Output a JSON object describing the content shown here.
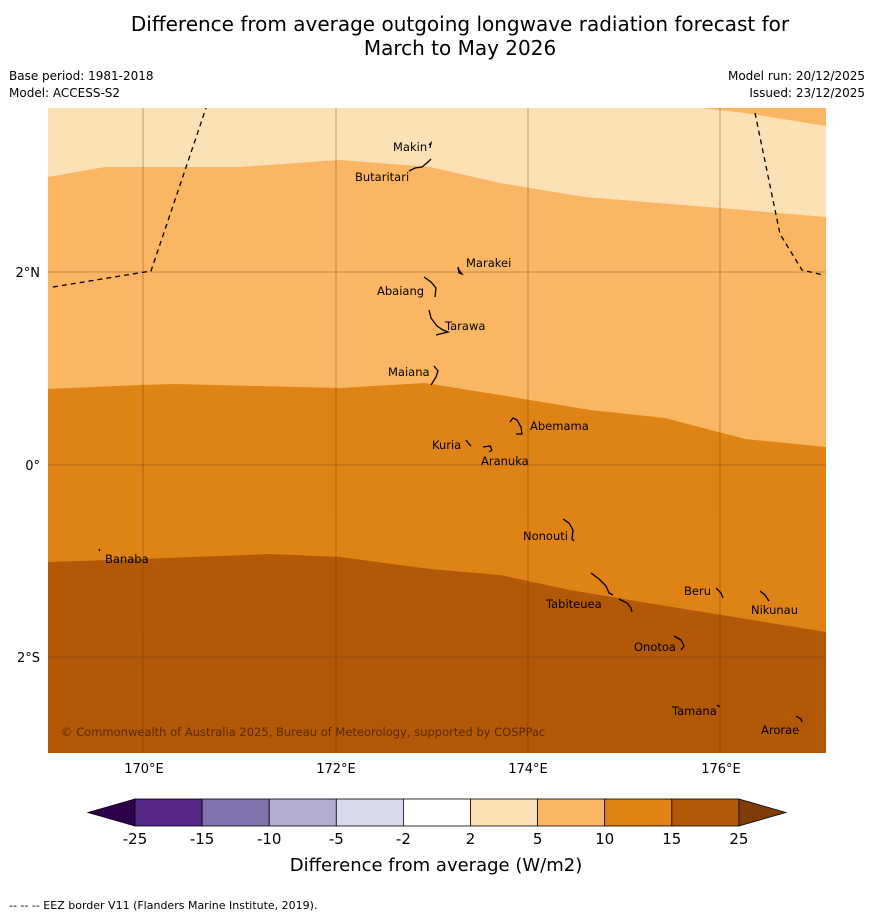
{
  "header": {
    "title_line1": "Difference from average outgoing longwave radiation forecast for",
    "title_line2": "March to May 2026",
    "base_period": "Base period: 1981-2018",
    "model": "Model: ACCESS-S2",
    "model_run": "Model run: 20/12/2025",
    "issued": "Issued: 23/12/2025"
  },
  "map": {
    "lat_labels": [
      "2°N",
      "0°",
      "2°S"
    ],
    "lon_labels": [
      "170°E",
      "172°E",
      "174°E",
      "176°E"
    ],
    "copyright": "© Commonwealth of Australia 2025, Bureau of Meteorology, supported by COSPPac",
    "places": [
      "Makin",
      "Butaritari",
      "Marakei",
      "Abaiang",
      "Tarawa",
      "Maiana",
      "Abemama",
      "Kuria",
      "Aranuka",
      "Nonouti",
      "Banaba",
      "Beru",
      "Nikunau",
      "Tabiteuea",
      "Onotoa",
      "Tamana",
      "Arorae"
    ],
    "colors": {
      "band_2_5": "#fde1b6",
      "band_5_10": "#fbb663",
      "band_10_15": "#e08317",
      "band_15_25": "#b35806"
    }
  },
  "legend": {
    "tick_labels": [
      "-25",
      "-15",
      "-10",
      "-5",
      "-2",
      "2",
      "5",
      "10",
      "15",
      "25"
    ],
    "xlabel": "Difference from average (W/m2)",
    "colors": [
      "#2d004b",
      "#542788",
      "#8073ac",
      "#b2abd2",
      "#d8daeb",
      "#ffffff",
      "#fde0b6",
      "#fbb663",
      "#e08214",
      "#b35806",
      "#7f3b08"
    ]
  },
  "footnote": "--  --  -- EEZ border V11 (Flanders Marine Institute, 2019)."
}
